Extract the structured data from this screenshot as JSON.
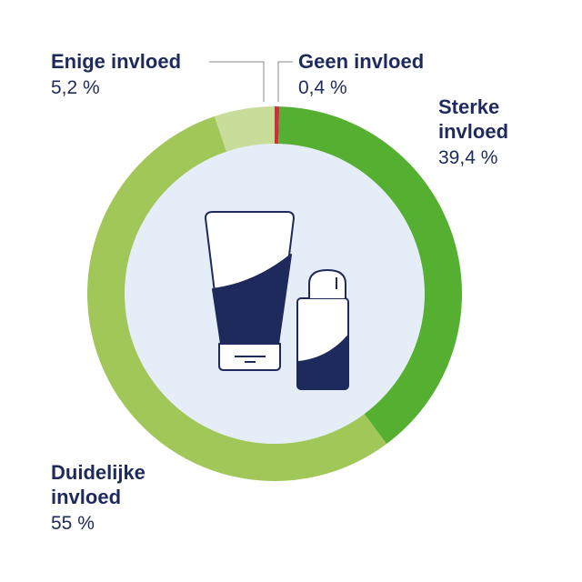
{
  "chart_data": {
    "type": "donut",
    "categories": [
      "Geen invloed",
      "Sterke invloed",
      "Duidelijke invloed",
      "Enige invloed"
    ],
    "values": [
      0.4,
      39.4,
      55,
      5.2
    ],
    "value_labels": [
      "0,4 %",
      "39,4 %",
      "55 %",
      "5,2 %"
    ],
    "colors": [
      "#d22c3f",
      "#55af31",
      "#a2c759",
      "#c7dd99"
    ]
  }
}
